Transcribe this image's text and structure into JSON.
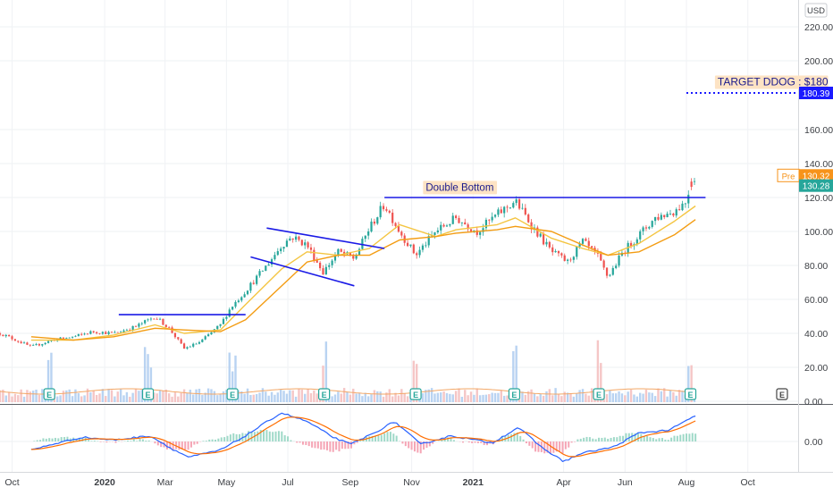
{
  "chart_data": {
    "type": "candlestick",
    "currency_label": "USD",
    "price_axis": {
      "ylim": [
        0,
        230
      ],
      "ticks": [
        "0.00",
        "20.00",
        "40.00",
        "60.00",
        "80.00",
        "100.00",
        "120.00",
        "140.00",
        "160.00",
        "200.00",
        "220.00"
      ],
      "tick_values": [
        0,
        20,
        40,
        60,
        80,
        100,
        120,
        140,
        160,
        200,
        220
      ]
    },
    "macd_axis": {
      "ticks": [
        "0.00"
      ]
    },
    "time_axis": {
      "labels": [
        "Oct",
        "2020",
        "Mar",
        "May",
        "Jul",
        "Sep",
        "Nov",
        "2021",
        "Apr",
        "Jun",
        "Aug",
        "Oct"
      ],
      "label_dates": [
        "2019-10-01",
        "2020-01-01",
        "2020-03-01",
        "2020-05-01",
        "2020-07-01",
        "2020-09-01",
        "2020-11-01",
        "2021-01-01",
        "2021-04-01",
        "2021-06-01",
        "2021-08-01",
        "2021-10-01"
      ],
      "bold_labels": [
        "2020",
        "2021"
      ],
      "range": [
        "2019-09-19",
        "2021-11-20"
      ]
    },
    "price_path": [
      [
        "2019-09-19",
        40
      ],
      [
        "2019-10-01",
        37
      ],
      [
        "2019-10-20",
        32
      ],
      [
        "2019-11-10",
        36
      ],
      [
        "2019-12-01",
        38
      ],
      [
        "2019-12-20",
        41
      ],
      [
        "2020-01-10",
        40
      ],
      [
        "2020-02-01",
        44
      ],
      [
        "2020-02-20",
        50
      ],
      [
        "2020-03-05",
        43
      ],
      [
        "2020-03-20",
        31
      ],
      [
        "2020-04-05",
        35
      ],
      [
        "2020-04-25",
        45
      ],
      [
        "2020-05-05",
        55
      ],
      [
        "2020-05-20",
        65
      ],
      [
        "2020-06-10",
        80
      ],
      [
        "2020-06-25",
        92
      ],
      [
        "2020-07-05",
        97
      ],
      [
        "2020-07-20",
        92
      ],
      [
        "2020-08-05",
        76
      ],
      [
        "2020-08-20",
        88
      ],
      [
        "2020-09-05",
        84
      ],
      [
        "2020-09-20",
        102
      ],
      [
        "2020-10-05",
        116
      ],
      [
        "2020-10-20",
        100
      ],
      [
        "2020-11-05",
        86
      ],
      [
        "2020-11-25",
        100
      ],
      [
        "2020-12-15",
        108
      ],
      [
        "2021-01-05",
        100
      ],
      [
        "2021-01-25",
        110
      ],
      [
        "2021-02-12",
        118
      ],
      [
        "2021-03-01",
        103
      ],
      [
        "2021-03-20",
        88
      ],
      [
        "2021-04-05",
        82
      ],
      [
        "2021-04-20",
        94
      ],
      [
        "2021-05-05",
        85
      ],
      [
        "2021-05-15",
        73
      ],
      [
        "2021-05-30",
        88
      ],
      [
        "2021-06-15",
        98
      ],
      [
        "2021-07-01",
        108
      ],
      [
        "2021-07-20",
        112
      ],
      [
        "2021-08-01",
        118
      ],
      [
        "2021-08-05",
        129
      ],
      [
        "2021-08-10",
        130
      ]
    ],
    "moving_averages": [
      {
        "color": "#f4c542",
        "points": [
          [
            "2019-10-20",
            36
          ],
          [
            "2019-12-01",
            36
          ],
          [
            "2020-01-10",
            39
          ],
          [
            "2020-02-20",
            45
          ],
          [
            "2020-03-20",
            40
          ],
          [
            "2020-04-25",
            42
          ],
          [
            "2020-05-20",
            57
          ],
          [
            "2020-06-25",
            78
          ],
          [
            "2020-07-20",
            88
          ],
          [
            "2020-08-20",
            86
          ],
          [
            "2020-09-20",
            90
          ],
          [
            "2020-10-20",
            104
          ],
          [
            "2020-11-25",
            97
          ],
          [
            "2020-12-15",
            101
          ],
          [
            "2021-01-25",
            104
          ],
          [
            "2021-02-12",
            108
          ],
          [
            "2021-03-20",
            96
          ],
          [
            "2021-04-20",
            90
          ],
          [
            "2021-05-15",
            86
          ],
          [
            "2021-06-15",
            93
          ],
          [
            "2021-07-20",
            106
          ],
          [
            "2021-08-10",
            115
          ]
        ]
      },
      {
        "color": "#f39c12",
        "points": [
          [
            "2019-10-20",
            38
          ],
          [
            "2019-12-01",
            36
          ],
          [
            "2020-01-10",
            38
          ],
          [
            "2020-02-20",
            43
          ],
          [
            "2020-03-20",
            42
          ],
          [
            "2020-04-25",
            41
          ],
          [
            "2020-05-20",
            48
          ],
          [
            "2020-06-25",
            68
          ],
          [
            "2020-07-20",
            82
          ],
          [
            "2020-08-20",
            86
          ],
          [
            "2020-09-20",
            86
          ],
          [
            "2020-10-20",
            95
          ],
          [
            "2020-11-25",
            97
          ],
          [
            "2020-12-15",
            99
          ],
          [
            "2021-01-25",
            101
          ],
          [
            "2021-02-12",
            103
          ],
          [
            "2021-03-20",
            100
          ],
          [
            "2021-04-20",
            92
          ],
          [
            "2021-05-15",
            86
          ],
          [
            "2021-06-15",
            88
          ],
          [
            "2021-07-20",
            98
          ],
          [
            "2021-08-10",
            107
          ]
        ]
      }
    ],
    "trendlines": [
      {
        "from": [
          "2020-01-15",
          51
        ],
        "to": [
          "2020-05-20",
          51
        ]
      },
      {
        "from": [
          "2020-06-10",
          102
        ],
        "to": [
          "2020-10-05",
          90
        ]
      },
      {
        "from": [
          "2020-05-25",
          85
        ],
        "to": [
          "2020-09-05",
          68
        ]
      },
      {
        "from": [
          "2020-10-05",
          120
        ],
        "to": [
          "2021-08-20",
          120
        ]
      }
    ],
    "target_line": {
      "from": "2021-08-01",
      "value": 180.39,
      "color": "#1a1aff"
    },
    "annotations": [
      {
        "text": "TARGET DDOG : $180",
        "at": [
          "2021-09-01",
          185
        ]
      },
      {
        "text": "Double Bottom",
        "at": [
          "2020-11-15",
          124
        ]
      }
    ],
    "price_badges": [
      {
        "label": "180.39",
        "value": 180.39,
        "color": "#1a1aff"
      },
      {
        "prefix": "Pre",
        "label": "130.32",
        "value": 133,
        "color": "#f7931a"
      },
      {
        "label": "130.28",
        "value": 127,
        "color": "#26a69a"
      }
    ],
    "earnings_markers": [
      "2019-11-07",
      "2020-02-13",
      "2020-05-07",
      "2020-08-06",
      "2020-11-05",
      "2021-02-11",
      "2021-05-06",
      "2021-08-05"
    ],
    "future_earnings": "2021-11-04",
    "earnings_label": "E",
    "macd_path": [
      [
        "2019-10-20",
        -0.3
      ],
      [
        "2019-11-10",
        -0.1
      ],
      [
        "2019-12-10",
        0.15
      ],
      [
        "2020-01-10",
        0.05
      ],
      [
        "2020-02-15",
        0.2
      ],
      [
        "2020-03-10",
        -0.3
      ],
      [
        "2020-03-25",
        -0.55
      ],
      [
        "2020-04-25",
        -0.3
      ],
      [
        "2020-05-20",
        0.2
      ],
      [
        "2020-06-15",
        0.8
      ],
      [
        "2020-06-25",
        1.0
      ],
      [
        "2020-07-20",
        0.7
      ],
      [
        "2020-08-15",
        0.15
      ],
      [
        "2020-09-01",
        -0.1
      ],
      [
        "2020-09-25",
        0.3
      ],
      [
        "2020-10-15",
        0.7
      ],
      [
        "2020-11-10",
        -0.1
      ],
      [
        "2020-12-10",
        0.2
      ],
      [
        "2021-01-20",
        -0.05
      ],
      [
        "2021-02-15",
        0.5
      ],
      [
        "2021-03-10",
        -0.2
      ],
      [
        "2021-04-01",
        -0.7
      ],
      [
        "2021-04-20",
        -0.4
      ],
      [
        "2021-05-20",
        -0.2
      ],
      [
        "2021-06-15",
        0.3
      ],
      [
        "2021-07-15",
        0.4
      ],
      [
        "2021-08-10",
        0.9
      ]
    ]
  }
}
